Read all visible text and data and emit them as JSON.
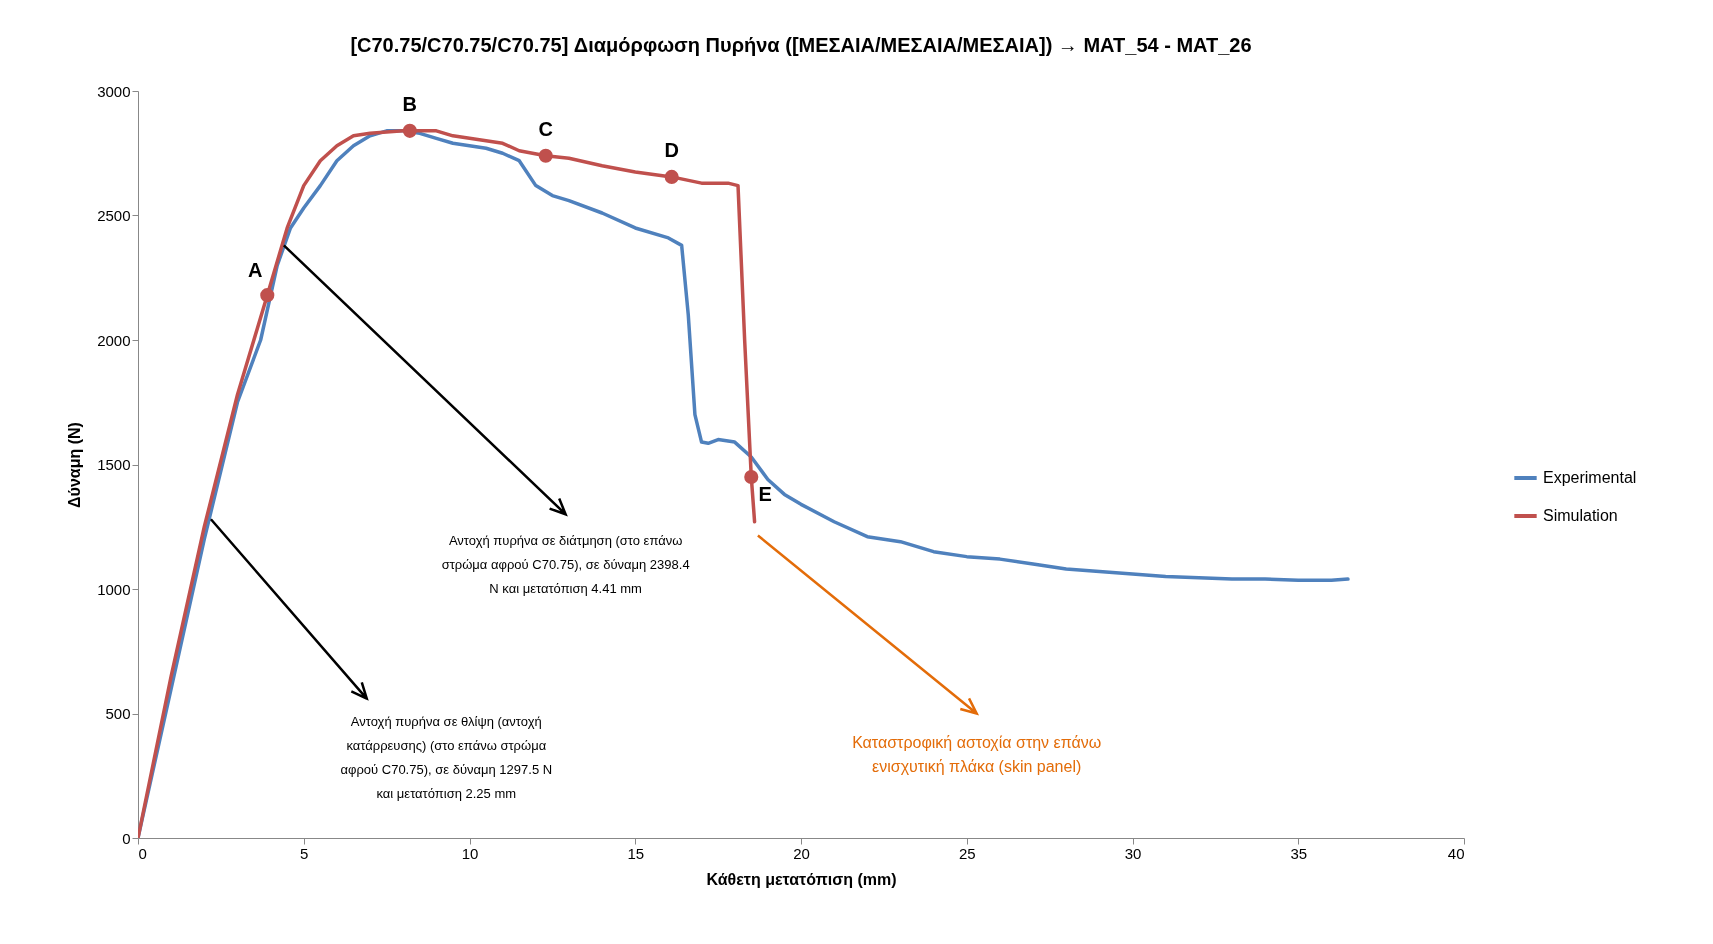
{
  "chart_data": {
    "type": "line",
    "title": "[C70.75/C70.75/C70.75] Διαμόρφωση Πυρήνα ([ΜΕΣΑΙΑ/ΜΕΣΑΙΑ/ΜΕΣΑΙΑ]) → MAT_54 - MAT_26",
    "xlabel": "Κάθετη μετατόπιση (mm)",
    "ylabel": "Δύναμη (N)",
    "xlim": [
      0,
      40
    ],
    "ylim": [
      0,
      3000
    ],
    "xticks": [
      0,
      5,
      10,
      15,
      20,
      25,
      30,
      35,
      40
    ],
    "yticks": [
      0,
      500,
      1000,
      1500,
      2000,
      2500,
      3000
    ],
    "legend": "right",
    "series": [
      {
        "name": "Experimental",
        "color": "#4f81bd",
        "x": [
          0,
          1,
          2,
          3,
          3.7,
          4.2,
          4.6,
          5,
          5.5,
          6,
          6.5,
          7,
          7.5,
          8,
          8.5,
          9,
          9.5,
          10,
          10.5,
          11,
          11.5,
          12,
          12.5,
          13,
          14,
          15,
          16,
          16.4,
          16.6,
          16.8,
          17,
          17.2,
          17.5,
          18,
          18.5,
          19,
          19.5,
          20,
          21,
          22,
          23,
          24,
          25,
          26,
          27,
          28,
          29,
          30,
          31,
          32,
          33,
          34,
          35,
          36,
          36.5
        ],
        "values": [
          0,
          600,
          1200,
          1750,
          2000,
          2300,
          2450,
          2530,
          2620,
          2720,
          2780,
          2820,
          2840,
          2840,
          2830,
          2810,
          2790,
          2780,
          2770,
          2750,
          2720,
          2620,
          2580,
          2560,
          2510,
          2450,
          2410,
          2380,
          2100,
          1700,
          1590,
          1585,
          1600,
          1590,
          1530,
          1440,
          1380,
          1340,
          1270,
          1210,
          1190,
          1150,
          1130,
          1120,
          1100,
          1080,
          1070,
          1060,
          1050,
          1045,
          1040,
          1040,
          1035,
          1035,
          1040
        ]
      },
      {
        "name": "Simulation",
        "color": "#c0504d",
        "x": [
          0,
          1,
          2,
          3,
          3.9,
          4.5,
          5,
          5.5,
          6,
          6.5,
          7,
          8,
          9,
          9.5,
          10,
          11,
          11.5,
          12.3,
          13,
          14,
          15,
          16.1,
          17,
          17.8,
          18.1,
          18.3,
          18.5,
          18.6
        ],
        "values": [
          0,
          650,
          1250,
          1780,
          2180,
          2450,
          2620,
          2720,
          2780,
          2820,
          2830,
          2840,
          2840,
          2820,
          2810,
          2790,
          2760,
          2740,
          2730,
          2700,
          2675,
          2655,
          2630,
          2630,
          2620,
          2000,
          1450,
          1270
        ]
      },
      {
        "type": "scatter",
        "marker": "circle",
        "color": "#c0504d",
        "x": [
          3.9,
          8.2,
          12.3,
          16.1,
          18.5
        ],
        "values": [
          2180,
          2840,
          2740,
          2655,
          1450
        ]
      }
    ],
    "annotations": [
      {
        "text": "A",
        "x": 3.9,
        "y": 2180
      },
      {
        "text": "B",
        "x": 8.2,
        "y": 2840
      },
      {
        "text": "C",
        "x": 12.3,
        "y": 2740
      },
      {
        "text": "D",
        "x": 16.1,
        "y": 2655
      },
      {
        "text": "E",
        "x": 18.5,
        "y": 1450
      },
      "Αντοχή πυρήνα σε θλίψη (αντοχή κατάρρευσης) (στο επάνω στρώμα αφρού C70.75), σε δύναμη 1297.5 N και μετατόπιση 2.25 mm",
      "Αντοχή πυρήνα σε διάτμηση (στο επάνω στρώμα αφρού C70.75), σε δύναμη 2398.4 N και μετατόπιση 4.41 mm",
      "Καταστροφική αστοχία στην επάνω ενισχυτική πλάκα (skin panel)"
    ]
  }
}
